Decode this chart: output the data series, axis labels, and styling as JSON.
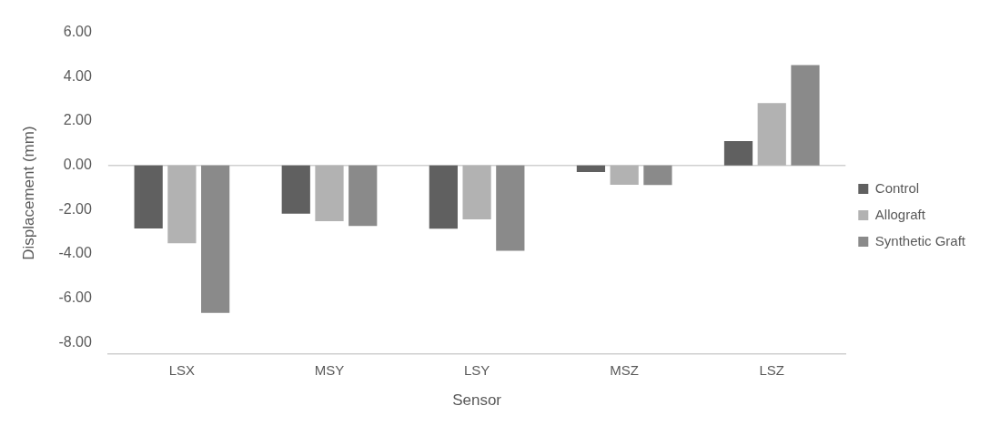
{
  "chart_data": {
    "type": "bar",
    "xlabel": "Sensor",
    "ylabel": "Displacement (mm)",
    "categories": [
      "LSX",
      "MSY",
      "LSY",
      "MSZ",
      "LSZ"
    ],
    "series": [
      {
        "name": "Control",
        "color": "#606060",
        "values": [
          -2.85,
          -2.18,
          -2.86,
          -0.3,
          1.1
        ]
      },
      {
        "name": "Allograft",
        "color": "#b2b2b2",
        "values": [
          -3.52,
          -2.52,
          -2.44,
          -0.88,
          2.81
        ]
      },
      {
        "name": "Synthetic Graft",
        "color": "#8a8a8a",
        "values": [
          -6.66,
          -2.73,
          -3.85,
          -0.89,
          4.53
        ]
      }
    ],
    "ylim": [
      -8.5,
      6
    ],
    "yticks": [
      {
        "value": 6,
        "label": "6.00"
      },
      {
        "value": 4,
        "label": "4.00"
      },
      {
        "value": 2,
        "label": "2.00"
      },
      {
        "value": 0,
        "label": "0.00"
      },
      {
        "value": -2,
        "label": "-2.00"
      },
      {
        "value": -4,
        "label": "-4.00"
      },
      {
        "value": -6,
        "label": "-6.00"
      },
      {
        "value": -8,
        "label": "-8.00"
      }
    ],
    "ref_lines": [
      {
        "axis": "y",
        "value": 0,
        "color": "#d0d0d0"
      }
    ],
    "grid": false,
    "legend": "right"
  }
}
